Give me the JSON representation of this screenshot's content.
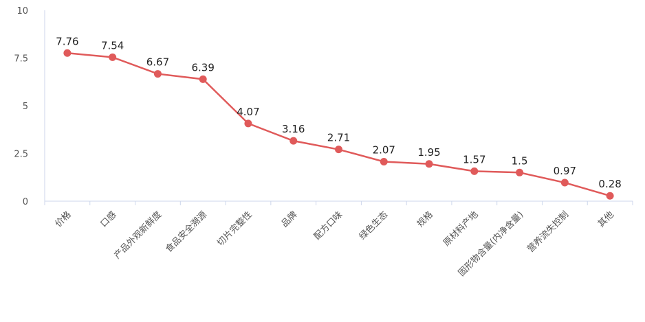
{
  "chart_data": {
    "type": "line",
    "categories": [
      "价格",
      "口感",
      "产品外观新鲜度",
      "食品安全溯源",
      "切片完整性",
      "品牌",
      "配方口味",
      "绿色生态",
      "规格",
      "原材料产地",
      "固形物含量(内净含量)",
      "营养流失控制",
      "其他"
    ],
    "series": [
      {
        "name": null,
        "color": "#e05a5a",
        "values": [
          7.76,
          7.54,
          6.67,
          6.39,
          4.07,
          3.16,
          2.71,
          2.07,
          1.95,
          1.57,
          1.5,
          0.97,
          0.28
        ]
      }
    ],
    "ylim": [
      0,
      10
    ],
    "yticks": [
      0,
      2.5,
      5,
      7.5,
      10
    ],
    "grid": false
  }
}
